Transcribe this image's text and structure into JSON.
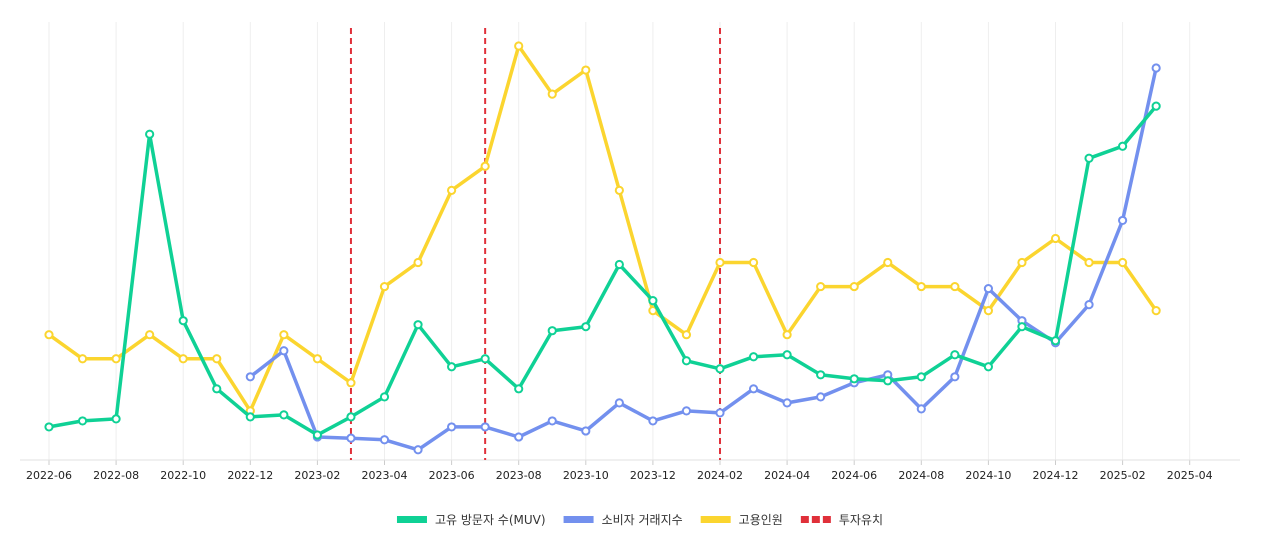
{
  "chart_data": {
    "type": "line",
    "title": "",
    "xlabel": "",
    "ylabel": "",
    "x": [
      "2022-06",
      "2022-07",
      "2022-08",
      "2022-09",
      "2022-10",
      "2022-11",
      "2022-12",
      "2023-01",
      "2023-02",
      "2023-03",
      "2023-04",
      "2023-05",
      "2023-06",
      "2023-07",
      "2023-08",
      "2023-09",
      "2023-10",
      "2023-11",
      "2023-12",
      "2024-01",
      "2024-02",
      "2024-03",
      "2024-04",
      "2024-05",
      "2024-06",
      "2024-07",
      "2024-08",
      "2024-09",
      "2024-10",
      "2024-11",
      "2024-12",
      "2025-01",
      "2025-02",
      "2025-03"
    ],
    "x_tick_labels": [
      "2022-06",
      "2022-08",
      "2022-10",
      "2022-12",
      "2023-02",
      "2023-04",
      "2023-06",
      "2023-08",
      "2023-10",
      "2023-12",
      "2024-02",
      "2024-04",
      "2024-06",
      "2024-08",
      "2024-10",
      "2024-12",
      "2025-02",
      "2025-04"
    ],
    "ylim": [
      0,
      100
    ],
    "grid": "vertical",
    "legend_position": "bottom-center",
    "series": [
      {
        "name": "고유 방문자 수(MUV)",
        "color": "#0fd195",
        "values": [
          7,
          8.5,
          9,
          80,
          33.5,
          16.5,
          9.5,
          10,
          5,
          9.5,
          14.5,
          32.5,
          22,
          24,
          16.5,
          31,
          32,
          47.5,
          38.5,
          23.5,
          21.5,
          24.5,
          25,
          20,
          19,
          18.5,
          19.5,
          25,
          22,
          32,
          28.5,
          74,
          77,
          87
        ]
      },
      {
        "name": "소비자 거래지수",
        "color": "#7390ee",
        "values": [
          null,
          null,
          null,
          null,
          null,
          null,
          19.5,
          26,
          4.5,
          4.2,
          3.8,
          1.3,
          7,
          7,
          4.5,
          8.5,
          6,
          13,
          8.5,
          11,
          10.5,
          16.5,
          13,
          14.5,
          18,
          20,
          11.5,
          19.5,
          41.5,
          33.5,
          28,
          37.5,
          58.5,
          96.5
        ]
      },
      {
        "name": "고용인원",
        "color": "#fbd52f",
        "values": [
          30,
          24,
          24,
          30,
          24,
          24,
          11,
          30,
          24,
          18,
          42,
          48,
          66,
          72,
          102,
          90,
          96,
          66,
          36,
          30,
          48,
          48,
          30,
          42,
          42,
          48,
          42,
          42,
          36,
          48,
          54,
          48,
          48,
          36
        ]
      }
    ],
    "investments": {
      "name": "투자유치",
      "color": "#e0303a",
      "dates": [
        "2023-03",
        "2023-07",
        "2024-02"
      ]
    }
  },
  "legend": {
    "items": [
      {
        "label": "고유 방문자 수(MUV)",
        "color": "#0fd195",
        "style": "line"
      },
      {
        "label": "소비자 거래지수",
        "color": "#7390ee",
        "style": "line"
      },
      {
        "label": "고용인원",
        "color": "#fbd52f",
        "style": "line"
      },
      {
        "label": "투자유치",
        "color": "#e0303a",
        "style": "dashed"
      }
    ]
  }
}
